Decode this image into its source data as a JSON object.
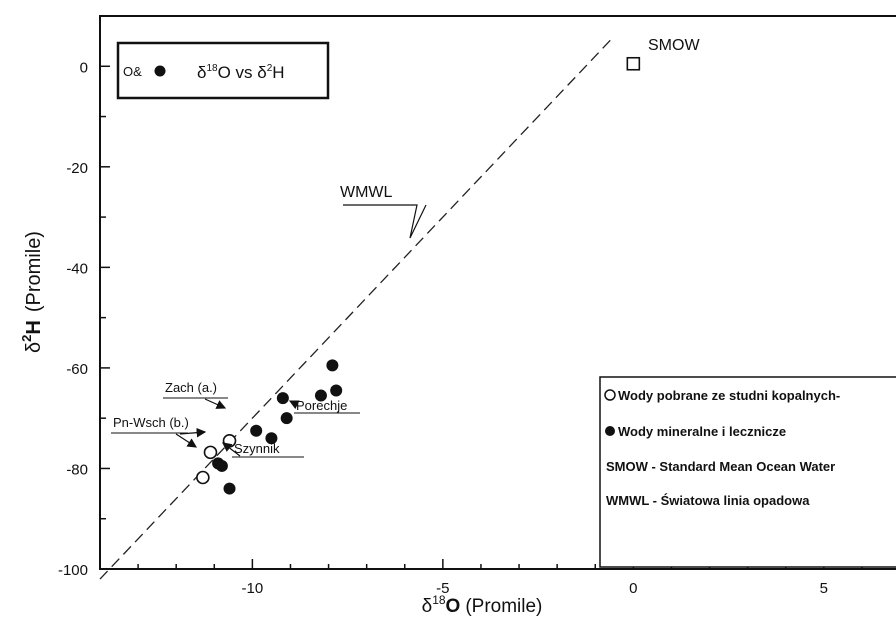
{
  "chart_data": {
    "type": "scatter",
    "title": "",
    "xlabel_symbol": "δ",
    "xlabel_sup": "18",
    "xlabel_o": "O",
    "xlabel_unit": "(Promile)",
    "ylabel_symbol": "δ",
    "ylabel_sup": "2",
    "ylabel_h": "H",
    "ylabel_unit": "(Promile)",
    "xlim": [
      -14,
      7
    ],
    "ylim": [
      -100,
      10
    ],
    "x_ticks": [
      -10,
      -5,
      0,
      5
    ],
    "x_tick_labels": [
      "-10",
      "-5",
      "0",
      "5"
    ],
    "y_ticks": [
      0,
      -20,
      -40,
      -60,
      -80,
      -100
    ],
    "y_tick_labels": [
      "0",
      "-20",
      "-40",
      "-60",
      "-80",
      "-100"
    ],
    "legend_top_left": {
      "symbols": "O&",
      "text_prefix": "δ",
      "text_sup1": "18",
      "text_mid": "O vs δ",
      "text_sup2": "2",
      "text_suffix": "H"
    },
    "legend_bottom_right": {
      "items": [
        "Wody pobrane ze studni kopalnych-",
        "Wody mineralne i lecznicze",
        "SMOW - Standard Mean Ocean Water",
        "WMWL - Światowa linia opadowa"
      ]
    },
    "series": [
      {
        "marker": "open-circle",
        "points": [
          [
            -10.6,
            -74.5
          ],
          [
            -11.1,
            -76.8
          ],
          [
            -11.3,
            -81.8
          ]
        ]
      },
      {
        "marker": "filled-circle",
        "points": [
          [
            -7.9,
            -59.5
          ],
          [
            -7.8,
            -64.5
          ],
          [
            -8.2,
            -65.5
          ],
          [
            -9.2,
            -66
          ],
          [
            -9.1,
            -70
          ],
          [
            -9.9,
            -72.5
          ],
          [
            -9.5,
            -74
          ],
          [
            -10.9,
            -79
          ],
          [
            -10.8,
            -79.5
          ],
          [
            -10.6,
            -84
          ]
        ]
      },
      {
        "marker": "open-square",
        "points": [
          [
            0,
            0.5
          ]
        ]
      }
    ],
    "wmwl_line": {
      "slope": 8,
      "intercept": 10,
      "x_range": [
        -14,
        -0.6
      ]
    },
    "annotations": [
      {
        "text": "SMOW"
      },
      {
        "text": "WMWL"
      },
      {
        "text": "Zach (a.)"
      },
      {
        "text": "Pn-Wsch (b.)"
      },
      {
        "text": "Szynnik"
      },
      {
        "text": "Porechje"
      }
    ]
  }
}
